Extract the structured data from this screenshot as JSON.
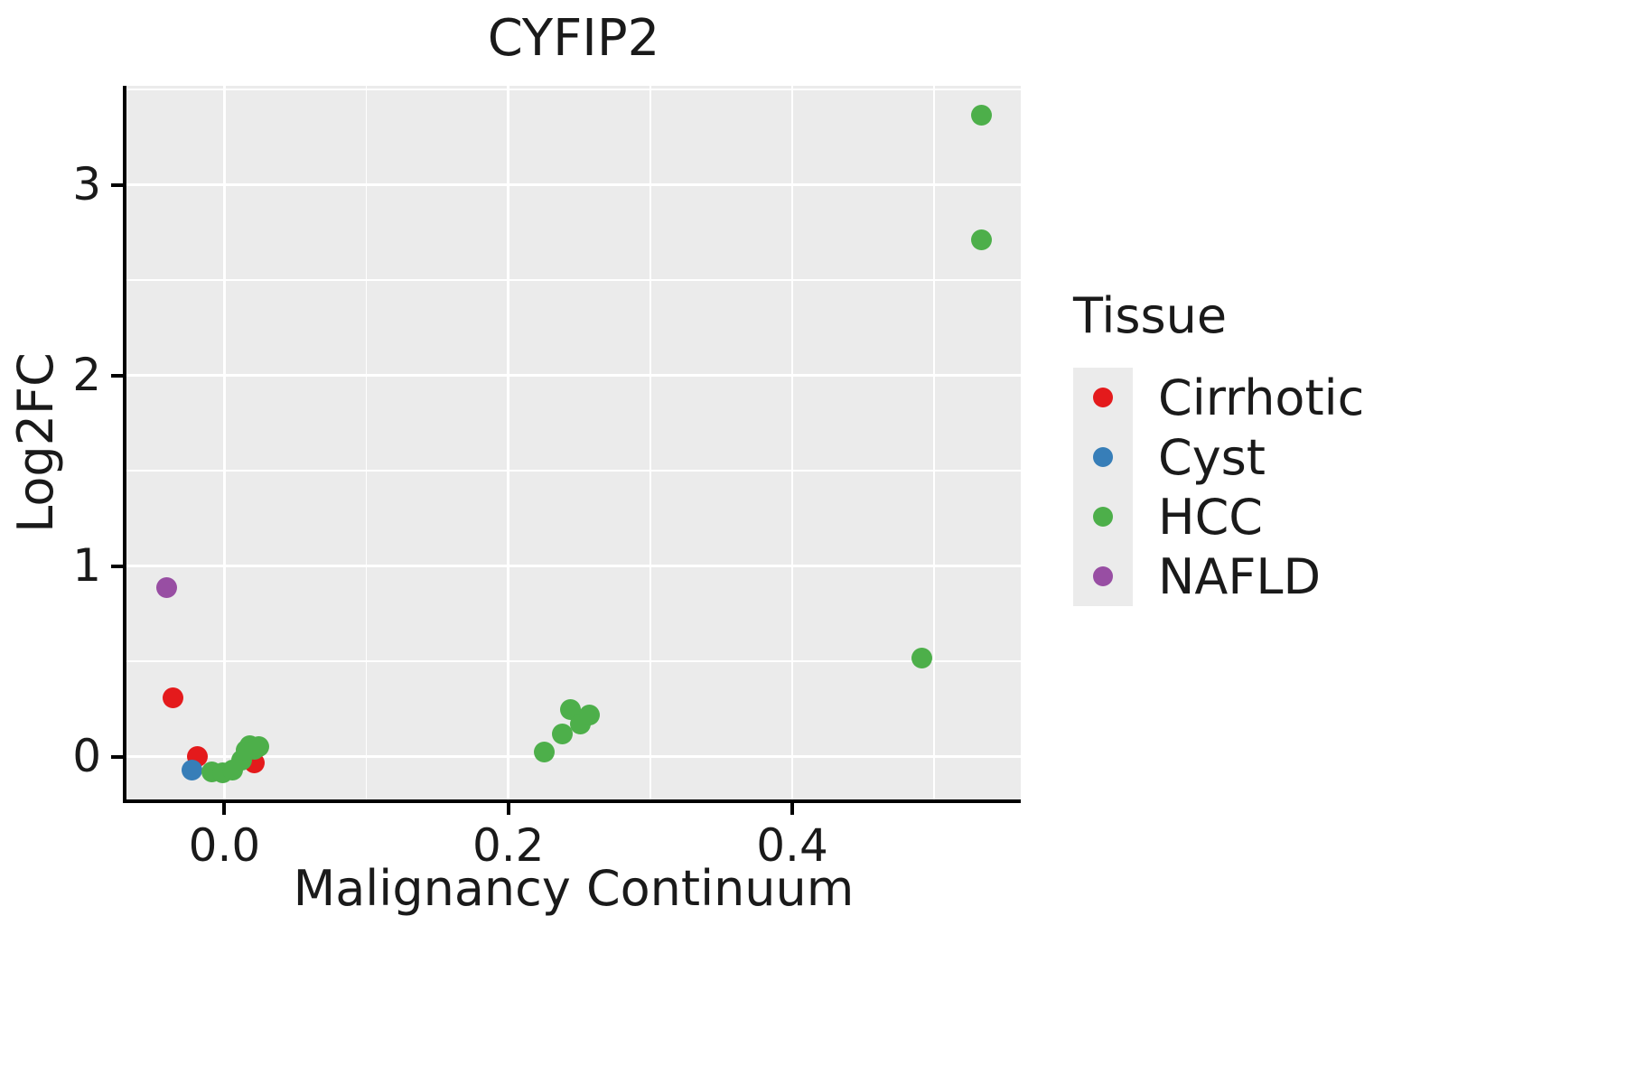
{
  "chart_data": {
    "type": "scatter",
    "title": "CYFIP2",
    "xlabel": "Malignancy Continuum",
    "ylabel": "Log2FC",
    "x_range": [
      -0.069,
      0.561
    ],
    "y_range": [
      -0.225,
      3.52
    ],
    "x_ticks": {
      "values": [
        0.0,
        0.2,
        0.4
      ],
      "labels": [
        "0.0",
        "0.2",
        "0.4"
      ]
    },
    "y_ticks": {
      "values": [
        0,
        1,
        2,
        3
      ],
      "labels": [
        "0",
        "1",
        "2",
        "3"
      ]
    },
    "x_minor": [
      0.1,
      0.3,
      0.5
    ],
    "y_minor": [
      0.5,
      1.5,
      2.5,
      3.5
    ],
    "grid": true,
    "panel_background": "#EBEBEB",
    "legend": {
      "title": "Tissue",
      "position": "right"
    },
    "series": [
      {
        "name": "Cirrhotic",
        "color": "#E41A1C",
        "points": [
          [
            -0.036,
            0.31
          ],
          [
            -0.019,
            0.0
          ],
          [
            0.021,
            -0.035
          ]
        ]
      },
      {
        "name": "Cyst",
        "color": "#377EB8",
        "points": [
          [
            -0.023,
            -0.07
          ]
        ]
      },
      {
        "name": "HCC",
        "color": "#4DAF4A",
        "points": [
          [
            -0.009,
            -0.082
          ],
          [
            -0.001,
            -0.087
          ],
          [
            0.006,
            -0.073
          ],
          [
            0.012,
            -0.021
          ],
          [
            0.015,
            0.031
          ],
          [
            0.018,
            0.055
          ],
          [
            0.021,
            0.036
          ],
          [
            0.024,
            0.05
          ],
          [
            0.225,
            0.022
          ],
          [
            0.238,
            0.121
          ],
          [
            0.244,
            0.245
          ],
          [
            0.251,
            0.173
          ],
          [
            0.257,
            0.216
          ],
          [
            0.491,
            0.515
          ],
          [
            0.533,
            3.364
          ],
          [
            0.533,
            2.714
          ]
        ]
      },
      {
        "name": "NAFLD",
        "color": "#984EA3",
        "points": [
          [
            -0.041,
            0.889
          ]
        ]
      }
    ]
  }
}
